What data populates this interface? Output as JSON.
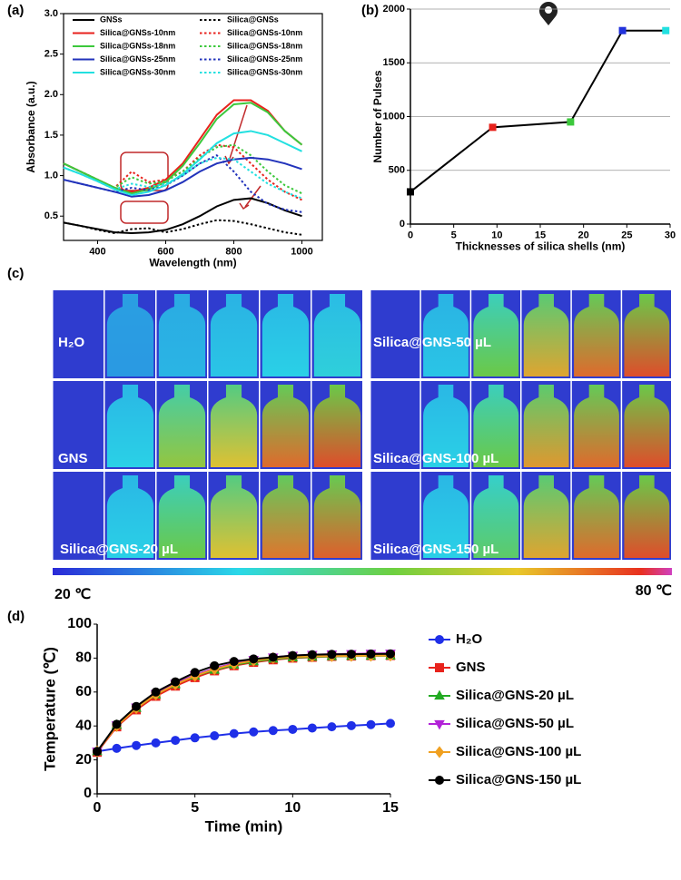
{
  "chart_data": [
    {
      "type": "line",
      "panel_label": "(a)",
      "x_label": "Wavelength (nm)",
      "y_label": "Absorbance (a.u.)",
      "x": [
        300,
        350,
        400,
        450,
        500,
        550,
        600,
        650,
        700,
        750,
        800,
        850,
        900,
        950,
        1000
      ],
      "xlim": [
        300,
        1060
      ],
      "xticks": [
        400,
        600,
        800,
        1000
      ],
      "ylim": [
        0.2,
        3.0
      ],
      "yticks": [
        0.5,
        {
          "value": 1.0,
          "label": "1.0"
        },
        1.5,
        {
          "value": 2.0,
          "label": "2.0"
        },
        2.5,
        {
          "value": 3.0,
          "label": "3.0"
        }
      ],
      "frame": "box",
      "legend": "upper right",
      "series": [
        {
          "name": "GNSs",
          "color": "#000000",
          "dash": false,
          "values": [
            0.42,
            0.38,
            0.34,
            0.3,
            0.29,
            0.3,
            0.33,
            0.4,
            0.5,
            0.62,
            0.7,
            0.72,
            0.66,
            0.57,
            0.5
          ]
        },
        {
          "name": "Silica@GNSs",
          "color": "#000000",
          "dash": true,
          "values": [
            0.42,
            0.38,
            0.33,
            0.29,
            0.34,
            0.35,
            0.3,
            0.34,
            0.4,
            0.45,
            0.44,
            0.4,
            0.35,
            0.3,
            0.27
          ]
        },
        {
          "name": "Silica@GNSs-10nm",
          "color": "#e8221c",
          "dash": false,
          "values": [
            1.15,
            1.05,
            0.95,
            0.85,
            0.8,
            0.85,
            0.95,
            1.15,
            1.45,
            1.75,
            1.93,
            1.93,
            1.8,
            1.55,
            1.38
          ]
        },
        {
          "name": "Silica@GNSs-10nm",
          "color": "#e8221c",
          "dash": true,
          "values": [
            1.15,
            1.05,
            0.95,
            0.85,
            1.05,
            0.92,
            0.95,
            1.05,
            1.25,
            1.38,
            1.35,
            1.15,
            0.95,
            0.8,
            0.7
          ]
        },
        {
          "name": "Silica@GNSs-18nm",
          "color": "#3cc83c",
          "dash": false,
          "values": [
            1.15,
            1.05,
            0.95,
            0.85,
            0.78,
            0.83,
            0.92,
            1.12,
            1.4,
            1.7,
            1.88,
            1.9,
            1.78,
            1.55,
            1.38
          ]
        },
        {
          "name": "Silica@GNSs-18nm",
          "color": "#3cc83c",
          "dash": true,
          "values": [
            1.15,
            1.05,
            0.95,
            0.85,
            0.98,
            0.9,
            0.93,
            1.05,
            1.22,
            1.35,
            1.38,
            1.25,
            1.05,
            0.88,
            0.78
          ]
        },
        {
          "name": "Silica@GNSs-25nm",
          "color": "#2233bb",
          "dash": false,
          "values": [
            0.95,
            0.9,
            0.85,
            0.8,
            0.74,
            0.76,
            0.82,
            0.92,
            1.05,
            1.15,
            1.2,
            1.22,
            1.2,
            1.15,
            1.08
          ]
        },
        {
          "name": "Silica@GNSs-25nm",
          "color": "#2233bb",
          "dash": true,
          "values": [
            0.95,
            0.9,
            0.85,
            0.8,
            0.85,
            0.82,
            0.88,
            1.0,
            1.15,
            1.25,
            1.05,
            0.8,
            0.65,
            0.58,
            0.55
          ]
        },
        {
          "name": "Silica@GNSs-30nm",
          "color": "#22e0e0",
          "dash": false,
          "values": [
            1.1,
            1.02,
            0.93,
            0.83,
            0.76,
            0.8,
            0.88,
            1.02,
            1.2,
            1.4,
            1.52,
            1.55,
            1.5,
            1.4,
            1.3
          ]
        },
        {
          "name": "Silica@GNSs-30nm",
          "color": "#22e0e0",
          "dash": true,
          "values": [
            1.1,
            1.02,
            0.93,
            0.83,
            0.9,
            0.86,
            0.9,
            1.0,
            1.15,
            1.22,
            1.2,
            1.05,
            0.9,
            0.8,
            0.72
          ]
        }
      ]
    },
    {
      "type": "line",
      "panel_label": "(b)",
      "x_label": "Thicknesses of silica shells (nm)",
      "y_label": "Number of Pulses",
      "x": [
        0,
        9.5,
        18.5,
        24.5,
        29.5
      ],
      "xlim": [
        0,
        30
      ],
      "xticks": [
        0,
        5,
        10,
        15,
        20,
        25,
        30
      ],
      "ylim": [
        0,
        2000
      ],
      "yticks": [
        0,
        500,
        1000,
        1500,
        2000
      ],
      "grid": true,
      "frame": "axes",
      "series": [
        {
          "color": "#000000",
          "marker": "square",
          "marker_colors": [
            "#000000",
            "#e8221c",
            "#3cc83c",
            "#2233dd",
            "#22e0e0"
          ],
          "values": [
            300,
            900,
            950,
            1800,
            1800
          ]
        }
      ]
    },
    {
      "type": "line",
      "panel_label": "(d)",
      "x_label": "Time (min)",
      "y_label": "Temperature (℃)",
      "x": [
        0,
        1,
        2,
        3,
        4,
        5,
        6,
        7,
        8,
        9,
        10,
        11,
        12,
        13,
        14,
        15
      ],
      "xlim": [
        0,
        15
      ],
      "xticks": [
        0,
        5,
        10,
        15
      ],
      "ylim": [
        0,
        100
      ],
      "yticks": [
        0,
        20,
        40,
        60,
        80,
        100
      ],
      "frame": "axes",
      "legend": "right",
      "series": [
        {
          "name": "H₂O",
          "color": "#1f2fe8",
          "marker": "circle",
          "values": [
            25,
            26.8,
            28.5,
            30,
            31.5,
            33,
            34.2,
            35.5,
            36.5,
            37.3,
            38,
            38.8,
            39.5,
            40.2,
            40.8,
            41.5
          ]
        },
        {
          "name": "GNS",
          "color": "#e8221c",
          "marker": "square",
          "values": [
            24.5,
            39.5,
            49.5,
            57.5,
            63.5,
            68.5,
            72.5,
            75.5,
            77.5,
            79,
            80,
            80.5,
            81,
            81.2,
            81.4,
            81.5
          ]
        },
        {
          "name": "Silica@GNS-20 µL",
          "color": "#22aa22",
          "marker": "triangle-up",
          "values": [
            25,
            40.5,
            50.5,
            58.5,
            64.5,
            69.5,
            73,
            76,
            78,
            79.5,
            80.3,
            80.7,
            81,
            81.2,
            81.3,
            81.4
          ]
        },
        {
          "name": "Silica@GNS-50 µL",
          "color": "#b222d8",
          "marker": "triangle-down",
          "values": [
            25,
            40.5,
            51,
            59,
            65,
            70,
            74,
            77,
            79,
            80.5,
            81.5,
            82,
            82.3,
            82.5,
            82.7,
            82.8
          ]
        },
        {
          "name": "Silica@GNS-100 µL",
          "color": "#f0a020",
          "marker": "diamond",
          "values": [
            25,
            40,
            50.5,
            58.5,
            64.5,
            69.5,
            73.5,
            76.5,
            78.5,
            80,
            80.7,
            81,
            81.2,
            81.3,
            81.4,
            81.5
          ]
        },
        {
          "name": "Silica@GNS-150 µL",
          "color": "#000000",
          "marker": "circle",
          "values": [
            25,
            41,
            51.5,
            60,
            66,
            71.5,
            75.5,
            78,
            79.5,
            80.5,
            81.5,
            82,
            82.2,
            82.3,
            82.4,
            82.5
          ]
        }
      ]
    }
  ],
  "thermal_images": {
    "panel_label": "(c)",
    "labels": [
      "H₂O",
      "GNS",
      "Silica@GNS-20 µL",
      "Silica@GNS-50 µL",
      "Silica@GNS-100 µL",
      "Silica@GNS-150 µL"
    ],
    "colorbar_min_label": "20 ℃",
    "colorbar_max_label": "80 ℃"
  }
}
